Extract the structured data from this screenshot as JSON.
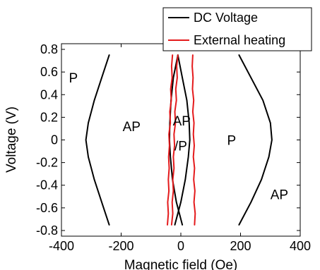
{
  "chart_data": {
    "type": "line",
    "title": "",
    "xlabel": "Magnetic field (Oe)",
    "ylabel": "Voltage (V)",
    "xlim": [
      -400,
      400
    ],
    "ylim": [
      -0.85,
      0.85
    ],
    "xticks": [
      -400,
      -200,
      0,
      200,
      400
    ],
    "yticks": [
      -0.8,
      -0.6,
      -0.4,
      -0.2,
      0,
      0.2,
      0.4,
      0.6,
      0.8
    ],
    "grid": false,
    "legend_position": "top-right",
    "series": [
      {
        "name": "DC Voltage",
        "color": "#000000",
        "segments": [
          [
            [
              -240,
              0.75
            ],
            [
              -265,
              0.55
            ],
            [
              -290,
              0.35
            ],
            [
              -310,
              0.15
            ],
            [
              -318,
              0
            ],
            [
              -310,
              -0.15
            ],
            [
              -290,
              -0.35
            ],
            [
              -265,
              -0.55
            ],
            [
              -240,
              -0.75
            ]
          ],
          [
            [
              -10,
              0.75
            ],
            [
              -25,
              0.55
            ],
            [
              -33,
              0.35
            ],
            [
              -37,
              0.15
            ],
            [
              -38,
              0
            ],
            [
              -35,
              -0.15
            ],
            [
              -28,
              -0.35
            ],
            [
              -15,
              -0.55
            ],
            [
              5,
              -0.75
            ]
          ],
          [
            [
              -10,
              0.75
            ],
            [
              5,
              0.55
            ],
            [
              20,
              0.35
            ],
            [
              28,
              0.15
            ],
            [
              30,
              0
            ],
            [
              25,
              -0.15
            ],
            [
              15,
              -0.35
            ],
            [
              0,
              -0.55
            ],
            [
              -20,
              -0.75
            ]
          ],
          [
            [
              195,
              0.75
            ],
            [
              235,
              0.55
            ],
            [
              275,
              0.35
            ],
            [
              300,
              0.15
            ],
            [
              305,
              0
            ],
            [
              295,
              -0.15
            ],
            [
              270,
              -0.35
            ],
            [
              235,
              -0.55
            ],
            [
              195,
              -0.75
            ]
          ]
        ]
      },
      {
        "name": "External heating",
        "color": "#e41a1c",
        "segments": [
          [
            [
              -28,
              0.75
            ],
            [
              -31,
              0.65
            ],
            [
              -29,
              0.55
            ],
            [
              -34,
              0.45
            ],
            [
              -32,
              0.35
            ],
            [
              -37,
              0.25
            ],
            [
              -35,
              0.15
            ],
            [
              -40,
              0.05
            ],
            [
              -38,
              -0.05
            ],
            [
              -41,
              -0.15
            ],
            [
              -39,
              -0.25
            ],
            [
              -42,
              -0.35
            ],
            [
              -40,
              -0.45
            ],
            [
              -44,
              -0.55
            ],
            [
              -42,
              -0.65
            ],
            [
              -45,
              -0.75
            ]
          ],
          [
            [
              -10,
              0.75
            ],
            [
              -14,
              0.65
            ],
            [
              -12,
              0.55
            ],
            [
              -17,
              0.45
            ],
            [
              -15,
              0.35
            ],
            [
              -20,
              0.25
            ],
            [
              -18,
              0.15
            ],
            [
              -23,
              0.05
            ],
            [
              -21,
              -0.05
            ],
            [
              -25,
              -0.15
            ],
            [
              -23,
              -0.25
            ],
            [
              -27,
              -0.35
            ],
            [
              -25,
              -0.45
            ],
            [
              -29,
              -0.55
            ],
            [
              -27,
              -0.65
            ],
            [
              -31,
              -0.75
            ]
          ],
          [
            [
              40,
              0.75
            ],
            [
              38,
              0.65
            ],
            [
              41,
              0.55
            ],
            [
              39,
              0.45
            ],
            [
              43,
              0.35
            ],
            [
              40,
              0.25
            ],
            [
              44,
              0.15
            ],
            [
              42,
              0.05
            ],
            [
              45,
              -0.05
            ],
            [
              42,
              -0.15
            ],
            [
              46,
              -0.25
            ],
            [
              43,
              -0.35
            ],
            [
              47,
              -0.45
            ],
            [
              44,
              -0.55
            ],
            [
              48,
              -0.65
            ],
            [
              46,
              -0.75
            ]
          ]
        ]
      }
    ],
    "annotations": [
      {
        "text": "P",
        "x": -360,
        "y": 0.55
      },
      {
        "text": "AP",
        "x": -165,
        "y": 0.12
      },
      {
        "text": "AP",
        "x": 3,
        "y": 0.17
      },
      {
        "text": "/P",
        "x": 0,
        "y": -0.05
      },
      {
        "text": "P",
        "x": 170,
        "y": 0
      },
      {
        "text": "AP",
        "x": 330,
        "y": -0.48
      }
    ]
  }
}
